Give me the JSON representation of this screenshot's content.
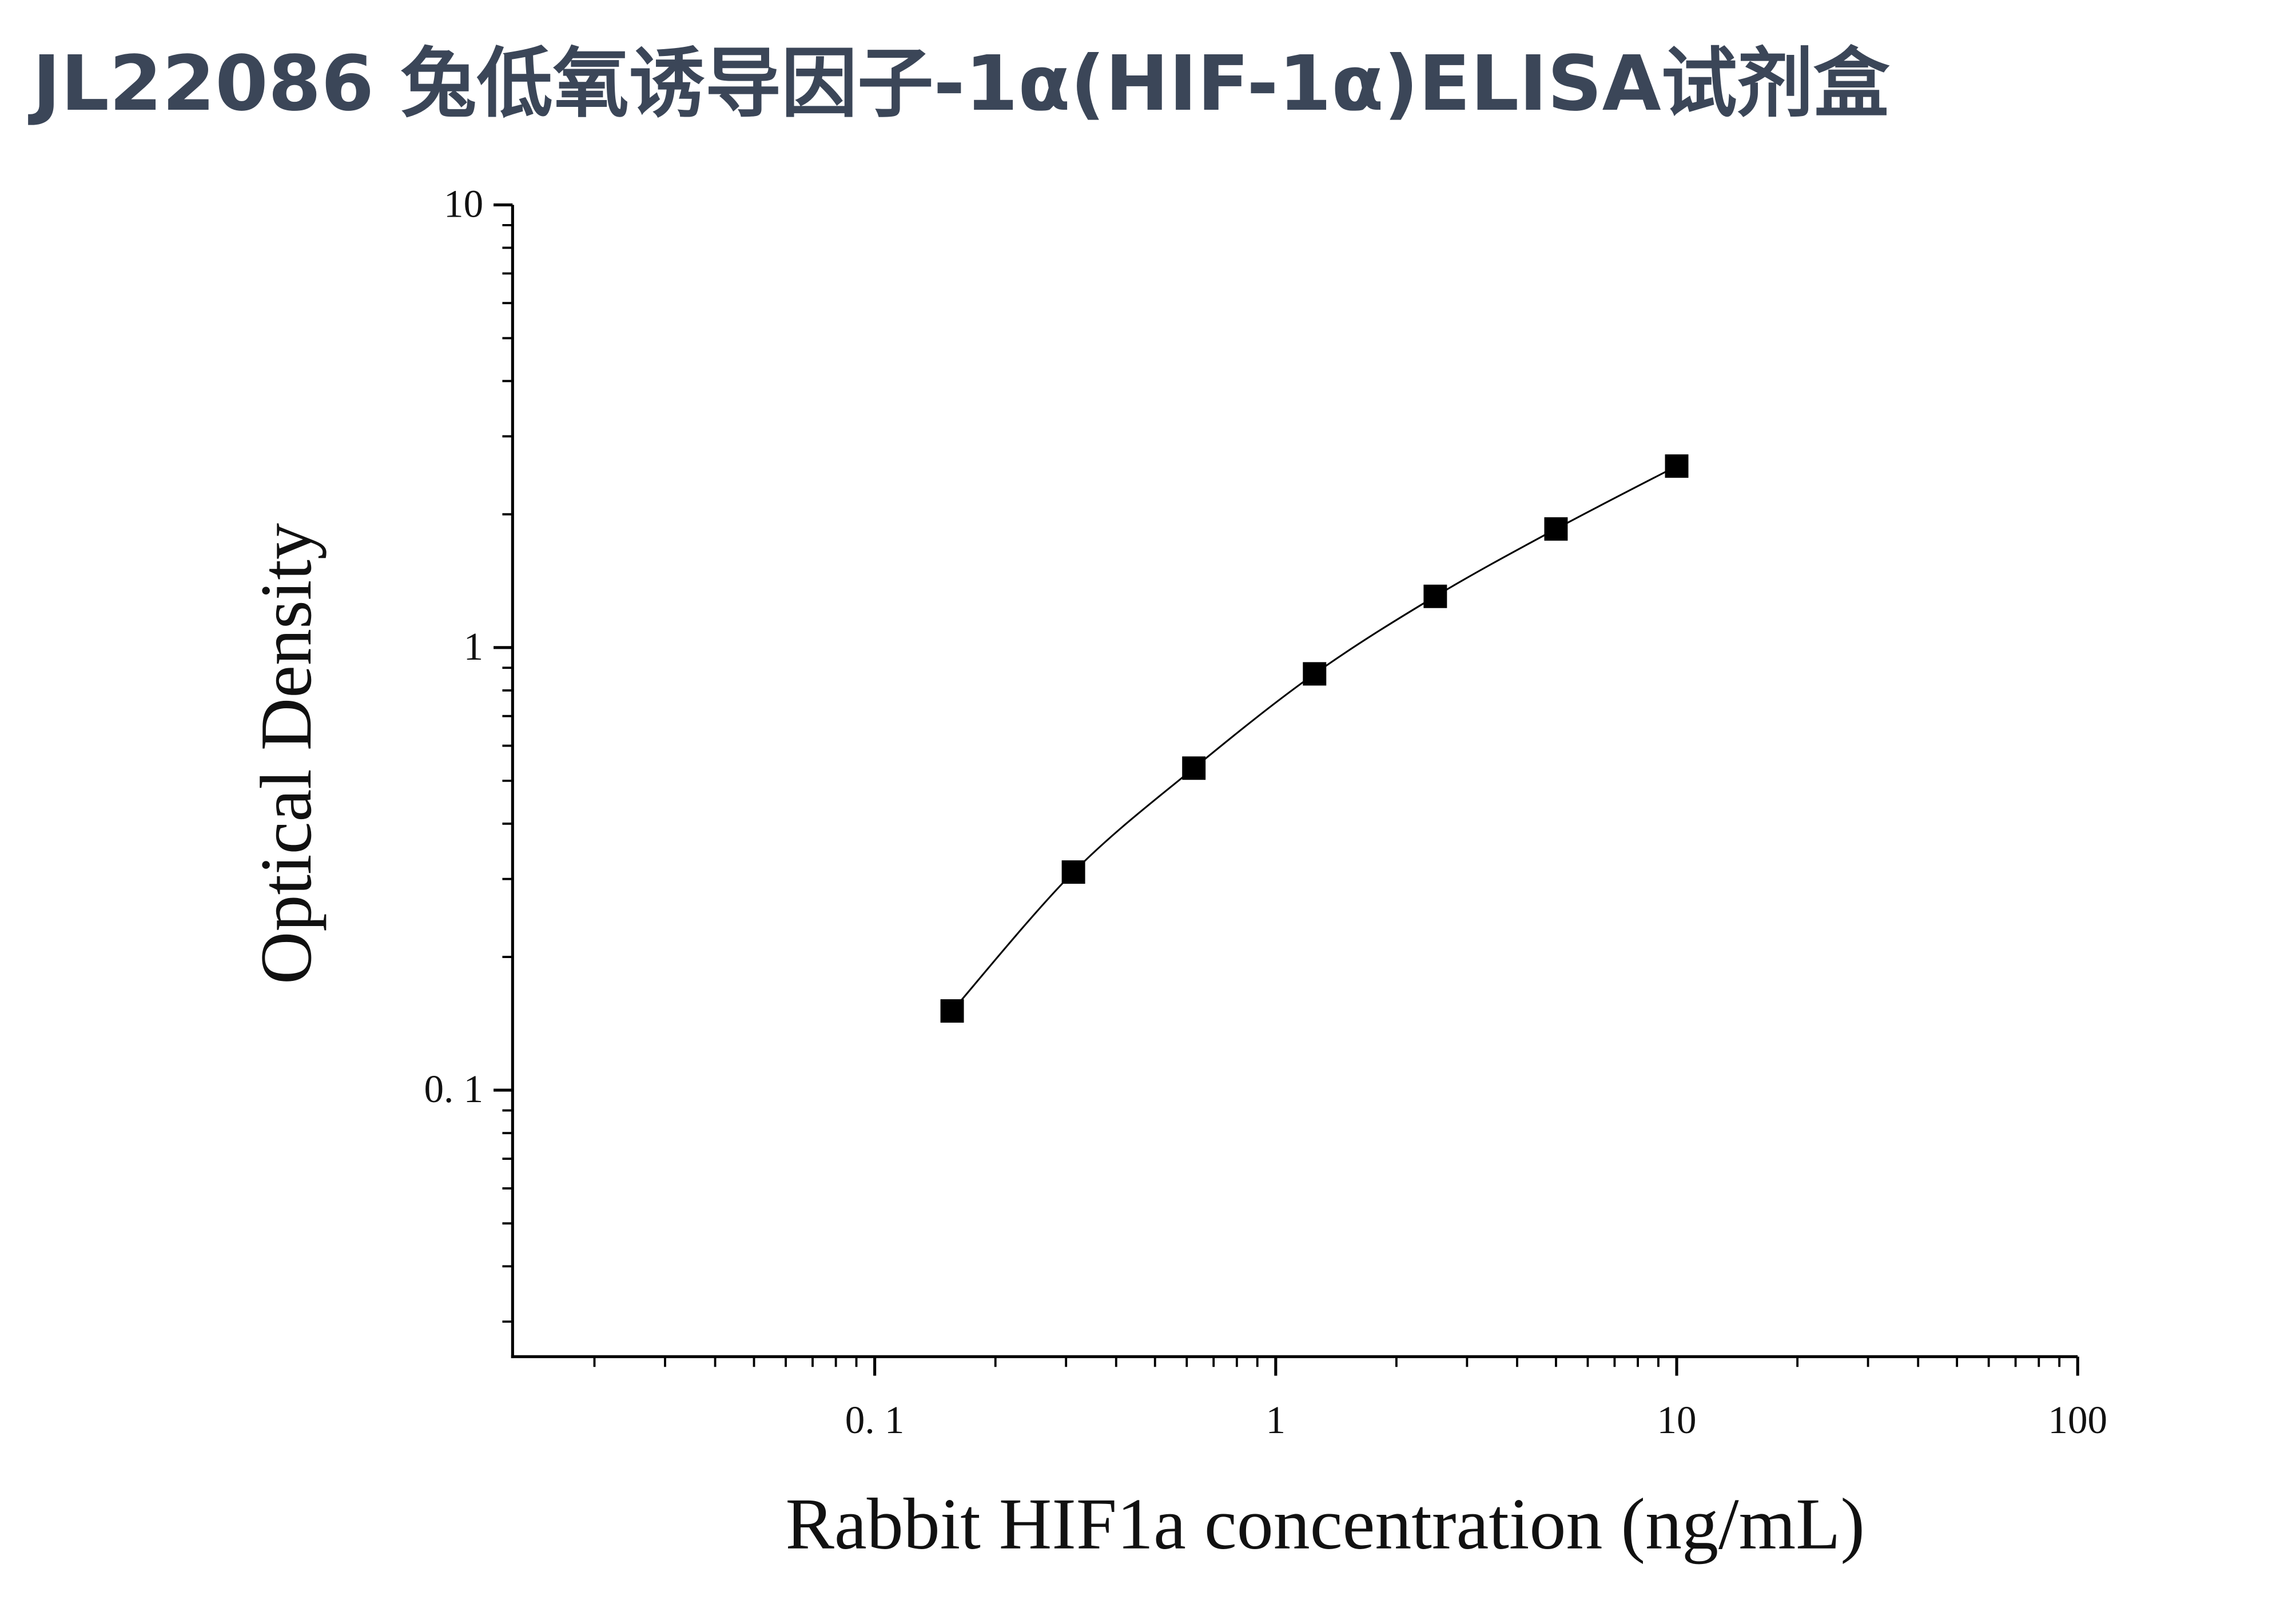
{
  "chart_data": {
    "type": "scatter",
    "title": "JL22086 兔低氧诱导因子-1α(HIF-1α)ELISA试剂盒",
    "x_label": "Rabbit HIF1a concentration (ng/mL)",
    "y_label": "Optical Density",
    "x": [
      0.156,
      0.313,
      0.625,
      1.25,
      2.5,
      5,
      10
    ],
    "series": [
      {
        "color": "#000000",
        "values": [
          0.151,
          0.311,
          0.534,
          0.872,
          1.305,
          1.853,
          2.57
        ]
      }
    ],
    "xlog": true,
    "ylog": true,
    "xlim": [
      0.0125,
      100
    ],
    "ylim": [
      0.025,
      10
    ],
    "xticks": [
      {
        "value": 0.1,
        "label": "0. 1"
      },
      1,
      10,
      100
    ],
    "yticks": [
      {
        "value": 0.1,
        "label": "0. 1"
      },
      1,
      10
    ],
    "grid": false
  }
}
